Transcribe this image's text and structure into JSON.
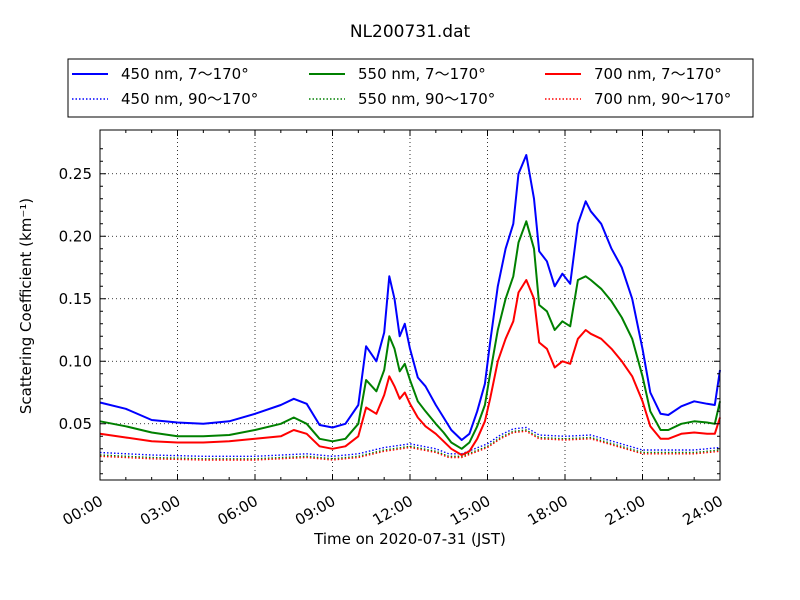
{
  "chart_data": {
    "type": "line",
    "title": "NL200731.dat",
    "xlabel": "Time on 2020-07-31 (JST)",
    "ylabel": "Scattering Coefficient (km⁻¹)",
    "xlim": [
      0,
      24
    ],
    "ylim": [
      0.005,
      0.285
    ],
    "x_ticks": [
      {
        "value": 0,
        "label": "00:00"
      },
      {
        "value": 3,
        "label": "03:00"
      },
      {
        "value": 6,
        "label": "06:00"
      },
      {
        "value": 9,
        "label": "09:00"
      },
      {
        "value": 12,
        "label": "12:00"
      },
      {
        "value": 15,
        "label": "15:00"
      },
      {
        "value": 18,
        "label": "18:00"
      },
      {
        "value": 21,
        "label": "21:00"
      },
      {
        "value": 24,
        "label": "24:00"
      }
    ],
    "y_ticks": [
      {
        "value": 0.05,
        "label": "0.05"
      },
      {
        "value": 0.1,
        "label": "0.10"
      },
      {
        "value": 0.15,
        "label": "0.15"
      },
      {
        "value": 0.2,
        "label": "0.20"
      },
      {
        "value": 0.25,
        "label": "0.25"
      }
    ],
    "grid": true,
    "legend_position": "top",
    "legend_columns": 3,
    "series": [
      {
        "name": "450 nm, 7～170°",
        "color": "#0000ff",
        "style": "solid",
        "x": [
          0,
          1,
          2,
          3,
          4,
          5,
          6,
          7,
          7.5,
          8,
          8.5,
          9,
          9.5,
          10,
          10.3,
          10.7,
          11,
          11.2,
          11.4,
          11.6,
          11.8,
          12,
          12.3,
          12.6,
          13,
          13.3,
          13.6,
          14,
          14.3,
          14.6,
          14.9,
          15.1,
          15.4,
          15.7,
          16,
          16.2,
          16.5,
          16.8,
          17,
          17.3,
          17.6,
          17.9,
          18.2,
          18.5,
          18.8,
          19,
          19.4,
          19.8,
          20.2,
          20.6,
          21,
          21.3,
          21.7,
          22,
          22.5,
          23,
          23.5,
          23.8,
          24
        ],
        "y": [
          0.067,
          0.062,
          0.053,
          0.051,
          0.05,
          0.052,
          0.058,
          0.065,
          0.07,
          0.066,
          0.049,
          0.047,
          0.05,
          0.065,
          0.112,
          0.1,
          0.123,
          0.168,
          0.15,
          0.12,
          0.13,
          0.11,
          0.087,
          0.08,
          0.065,
          0.055,
          0.045,
          0.037,
          0.042,
          0.06,
          0.082,
          0.115,
          0.16,
          0.19,
          0.21,
          0.25,
          0.265,
          0.23,
          0.188,
          0.18,
          0.16,
          0.17,
          0.162,
          0.21,
          0.228,
          0.22,
          0.21,
          0.19,
          0.175,
          0.15,
          0.11,
          0.075,
          0.058,
          0.057,
          0.064,
          0.068,
          0.066,
          0.065,
          0.093
        ]
      },
      {
        "name": "550 nm, 7～170°",
        "color": "#008000",
        "style": "solid",
        "x": [
          0,
          1,
          2,
          3,
          4,
          5,
          6,
          7,
          7.5,
          8,
          8.5,
          9,
          9.5,
          10,
          10.3,
          10.7,
          11,
          11.2,
          11.4,
          11.6,
          11.8,
          12,
          12.3,
          12.6,
          13,
          13.3,
          13.6,
          14,
          14.3,
          14.6,
          14.9,
          15.1,
          15.4,
          15.7,
          16,
          16.2,
          16.5,
          16.8,
          17,
          17.3,
          17.6,
          17.9,
          18.2,
          18.5,
          18.8,
          19,
          19.4,
          19.8,
          20.2,
          20.6,
          21,
          21.3,
          21.7,
          22,
          22.5,
          23,
          23.5,
          23.8,
          24
        ],
        "y": [
          0.052,
          0.048,
          0.043,
          0.04,
          0.04,
          0.041,
          0.045,
          0.05,
          0.055,
          0.05,
          0.038,
          0.036,
          0.038,
          0.05,
          0.085,
          0.076,
          0.093,
          0.12,
          0.11,
          0.092,
          0.098,
          0.085,
          0.068,
          0.06,
          0.05,
          0.043,
          0.035,
          0.03,
          0.035,
          0.048,
          0.065,
          0.09,
          0.125,
          0.15,
          0.168,
          0.195,
          0.212,
          0.19,
          0.145,
          0.14,
          0.125,
          0.132,
          0.128,
          0.165,
          0.168,
          0.165,
          0.158,
          0.148,
          0.135,
          0.118,
          0.088,
          0.06,
          0.045,
          0.045,
          0.05,
          0.052,
          0.051,
          0.05,
          0.068
        ]
      },
      {
        "name": "700 nm, 7～170°",
        "color": "#ff0000",
        "style": "solid",
        "x": [
          0,
          1,
          2,
          3,
          4,
          5,
          6,
          7,
          7.5,
          8,
          8.5,
          9,
          9.5,
          10,
          10.3,
          10.7,
          11,
          11.2,
          11.4,
          11.6,
          11.8,
          12,
          12.3,
          12.6,
          13,
          13.3,
          13.6,
          14,
          14.3,
          14.6,
          14.9,
          15.1,
          15.4,
          15.7,
          16,
          16.2,
          16.5,
          16.8,
          17,
          17.3,
          17.6,
          17.9,
          18.2,
          18.5,
          18.8,
          19,
          19.4,
          19.8,
          20.2,
          20.6,
          21,
          21.3,
          21.7,
          22,
          22.5,
          23,
          23.5,
          23.8,
          24
        ],
        "y": [
          0.042,
          0.039,
          0.036,
          0.035,
          0.035,
          0.036,
          0.038,
          0.04,
          0.045,
          0.042,
          0.032,
          0.03,
          0.032,
          0.04,
          0.063,
          0.058,
          0.073,
          0.088,
          0.08,
          0.07,
          0.075,
          0.066,
          0.055,
          0.048,
          0.042,
          0.036,
          0.03,
          0.025,
          0.028,
          0.038,
          0.052,
          0.07,
          0.1,
          0.118,
          0.132,
          0.155,
          0.165,
          0.15,
          0.115,
          0.11,
          0.095,
          0.1,
          0.098,
          0.118,
          0.125,
          0.122,
          0.118,
          0.11,
          0.1,
          0.088,
          0.068,
          0.048,
          0.038,
          0.038,
          0.042,
          0.043,
          0.042,
          0.042,
          0.055
        ]
      },
      {
        "name": "450 nm, 90～170°",
        "color": "#0000ff",
        "style": "dotted",
        "x": [
          0,
          2,
          4,
          6,
          8,
          9,
          10,
          11,
          12,
          13,
          13.5,
          14,
          15,
          15.5,
          16,
          16.5,
          17,
          18,
          19,
          20,
          21,
          22,
          23,
          24
        ],
        "y": [
          0.027,
          0.025,
          0.024,
          0.024,
          0.026,
          0.024,
          0.026,
          0.031,
          0.034,
          0.03,
          0.026,
          0.026,
          0.034,
          0.041,
          0.046,
          0.047,
          0.041,
          0.04,
          0.041,
          0.035,
          0.029,
          0.029,
          0.029,
          0.031
        ]
      },
      {
        "name": "550 nm, 90～170°",
        "color": "#008000",
        "style": "dotted",
        "x": [
          0,
          2,
          4,
          6,
          8,
          9,
          10,
          11,
          12,
          13,
          13.5,
          14,
          15,
          15.5,
          16,
          16.5,
          17,
          18,
          19,
          20,
          21,
          22,
          23,
          24
        ],
        "y": [
          0.025,
          0.023,
          0.022,
          0.022,
          0.024,
          0.022,
          0.024,
          0.029,
          0.032,
          0.028,
          0.024,
          0.024,
          0.032,
          0.039,
          0.044,
          0.045,
          0.039,
          0.038,
          0.039,
          0.033,
          0.027,
          0.027,
          0.027,
          0.029
        ]
      },
      {
        "name": "700 nm, 90～170°",
        "color": "#ff0000",
        "style": "dotted",
        "x": [
          0,
          2,
          4,
          6,
          8,
          9,
          10,
          11,
          12,
          13,
          13.5,
          14,
          15,
          15.5,
          16,
          16.5,
          17,
          18,
          19,
          20,
          21,
          22,
          23,
          24
        ],
        "y": [
          0.024,
          0.022,
          0.021,
          0.021,
          0.023,
          0.021,
          0.023,
          0.028,
          0.031,
          0.027,
          0.023,
          0.023,
          0.031,
          0.038,
          0.043,
          0.044,
          0.038,
          0.037,
          0.038,
          0.032,
          0.026,
          0.026,
          0.026,
          0.028
        ]
      }
    ]
  }
}
